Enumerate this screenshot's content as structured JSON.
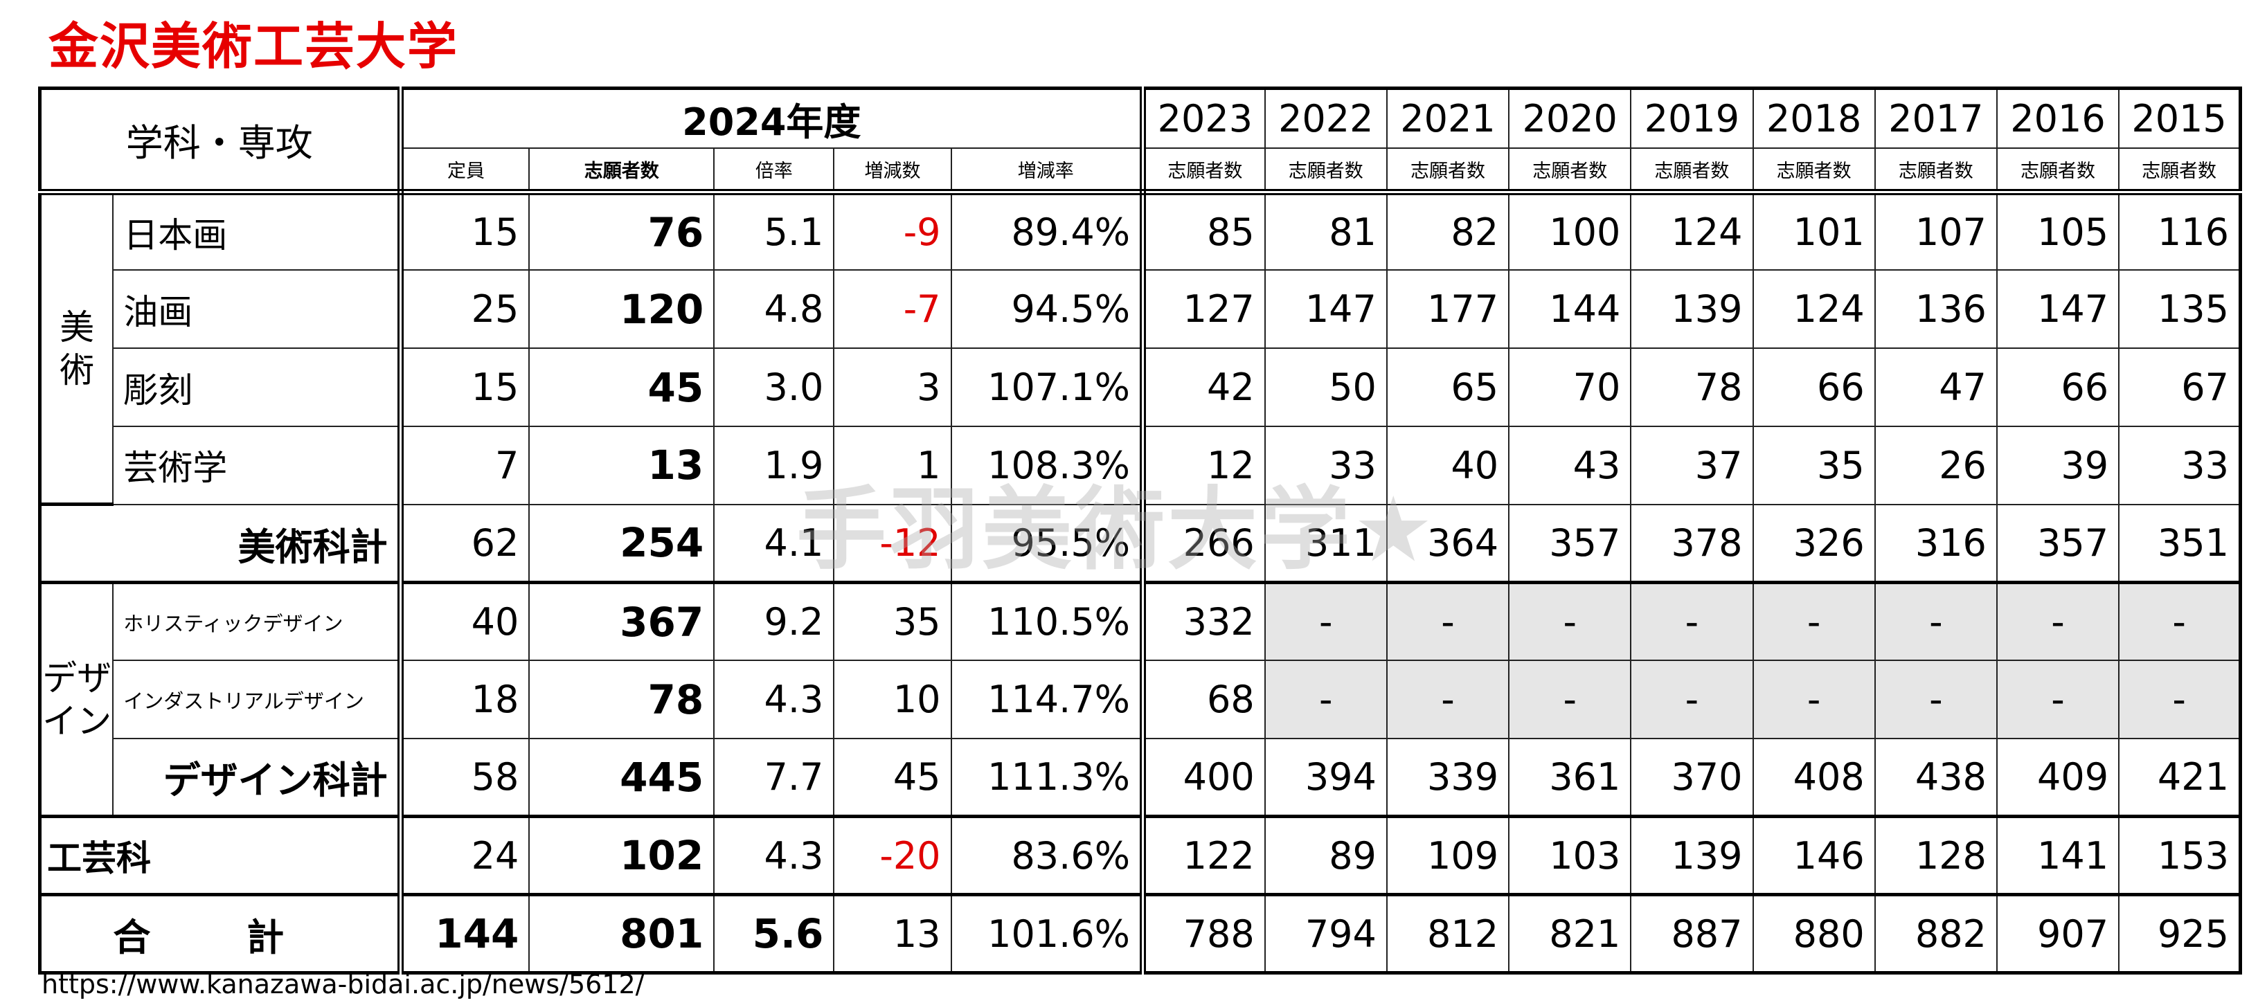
{
  "title": "金沢美術工芸大学",
  "watermark": "手羽美術大学★",
  "source_url": "https://www.kanazawa-bidai.ac.jp/news/5612/",
  "header": {
    "dept_label": "学科・専攻",
    "year_2024": "2024年度",
    "sub_2024": [
      "定員",
      "志願者数",
      "倍率",
      "増減数",
      "増減率"
    ],
    "years": [
      "2023",
      "2022",
      "2021",
      "2020",
      "2019",
      "2018",
      "2017",
      "2016",
      "2015"
    ],
    "applicants_label": "志願者数"
  },
  "groups": {
    "art": "美\n術",
    "design": "デザ\nイン"
  },
  "rows": [
    {
      "name": "日本画",
      "cap": "15",
      "app": "76",
      "ratio": "5.1",
      "diff": "-9",
      "rate": "89.4%",
      "hist": [
        "85",
        "81",
        "82",
        "100",
        "124",
        "101",
        "107",
        "105",
        "116"
      ]
    },
    {
      "name": "油画",
      "cap": "25",
      "app": "120",
      "ratio": "4.8",
      "diff": "-7",
      "rate": "94.5%",
      "hist": [
        "127",
        "147",
        "177",
        "144",
        "139",
        "124",
        "136",
        "147",
        "135"
      ]
    },
    {
      "name": "彫刻",
      "cap": "15",
      "app": "45",
      "ratio": "3.0",
      "diff": "3",
      "rate": "107.1%",
      "hist": [
        "42",
        "50",
        "65",
        "70",
        "78",
        "66",
        "47",
        "66",
        "67"
      ]
    },
    {
      "name": "芸術学",
      "cap": "7",
      "app": "13",
      "ratio": "1.9",
      "diff": "1",
      "rate": "108.3%",
      "hist": [
        "12",
        "33",
        "40",
        "43",
        "37",
        "35",
        "26",
        "39",
        "33"
      ]
    },
    {
      "name": "美術科計",
      "cap": "62",
      "app": "254",
      "ratio": "4.1",
      "diff": "-12",
      "rate": "95.5%",
      "hist": [
        "266",
        "311",
        "364",
        "357",
        "378",
        "326",
        "316",
        "357",
        "351"
      ]
    },
    {
      "name": "ホリスティックデザイン",
      "cap": "40",
      "app": "367",
      "ratio": "9.2",
      "diff": "35",
      "rate": "110.5%",
      "hist": [
        "332",
        "-",
        "-",
        "-",
        "-",
        "-",
        "-",
        "-",
        "-"
      ]
    },
    {
      "name": "インダストリアルデザイン",
      "cap": "18",
      "app": "78",
      "ratio": "4.3",
      "diff": "10",
      "rate": "114.7%",
      "hist": [
        "68",
        "-",
        "-",
        "-",
        "-",
        "-",
        "-",
        "-",
        "-"
      ]
    },
    {
      "name": "デザイン科計",
      "cap": "58",
      "app": "445",
      "ratio": "7.7",
      "diff": "45",
      "rate": "111.3%",
      "hist": [
        "400",
        "394",
        "339",
        "361",
        "370",
        "408",
        "438",
        "409",
        "421"
      ]
    },
    {
      "name": "工芸科",
      "cap": "24",
      "app": "102",
      "ratio": "4.3",
      "diff": "-20",
      "rate": "83.6%",
      "hist": [
        "122",
        "89",
        "109",
        "103",
        "139",
        "146",
        "128",
        "141",
        "153"
      ]
    },
    {
      "name": "合計",
      "cap": "144",
      "app": "801",
      "ratio": "5.6",
      "diff": "13",
      "rate": "101.6%",
      "hist": [
        "788",
        "794",
        "812",
        "821",
        "887",
        "880",
        "882",
        "907",
        "925"
      ]
    }
  ],
  "total_label_display": "合 計",
  "colors": {
    "title": "#e60000",
    "negative": "#e00000",
    "na_fill": "#e6e6e6"
  }
}
